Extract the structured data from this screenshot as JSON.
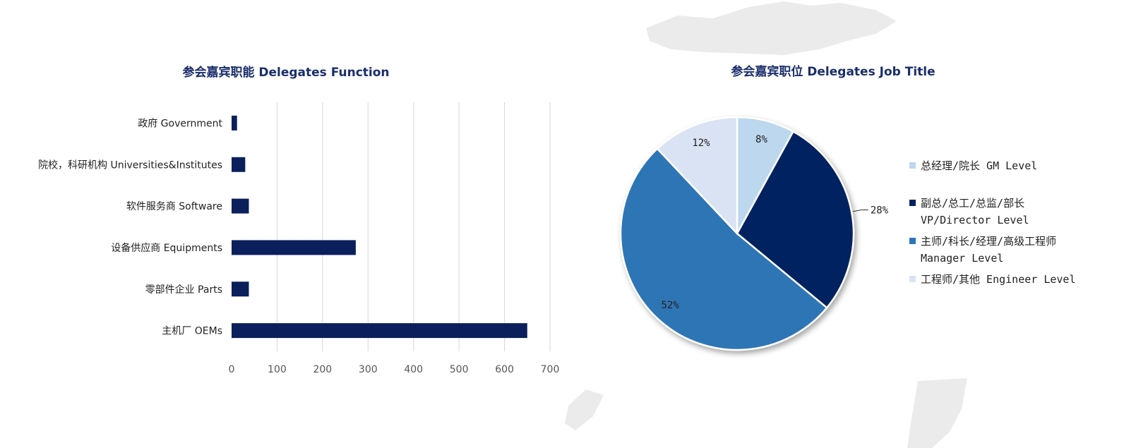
{
  "chart_data": [
    {
      "type": "bar",
      "orientation": "horizontal",
      "title": "参会嘉宾职能 Delegates Function",
      "categories": [
        "政府 Government",
        "院校，科研机构 Universities&Institutes",
        "软件服务商 Software",
        "设备供应商 Equipments",
        "零部件企业 Parts",
        "主机厂 OEMs"
      ],
      "values": [
        12,
        30,
        38,
        273,
        38,
        650
      ],
      "xlim": [
        0,
        700
      ],
      "xticks": [
        "0",
        "100",
        "200",
        "300",
        "400",
        "500",
        "600",
        "700"
      ],
      "grid": true,
      "colors": {
        "bar": "#0b1f5c"
      }
    },
    {
      "type": "pie",
      "title": "参会嘉宾职位 Delegates Job Title",
      "slices": [
        {
          "label": "总经理/院长 GM Level",
          "value": 8,
          "display": "8%",
          "color": "#bdd7ee"
        },
        {
          "label": "副总/总工/总监/部长 VP/Director Level",
          "value": 28,
          "display": "28%",
          "color": "#002060"
        },
        {
          "label": "主师/科长/经理/高级工程师 Manager Level",
          "value": 52,
          "display": "52%",
          "color": "#2e75b6"
        },
        {
          "label": "工程师/其他 Engineer Level",
          "value": 12,
          "display": "12%",
          "color": "#dae3f3"
        }
      ],
      "legend": [
        {
          "lines": [
            "总经理/院长 GM Level"
          ]
        },
        {
          "lines": [
            "副总/总工/总监/部长",
            "VP/Director Level"
          ]
        },
        {
          "lines": [
            "主师/科长/经理/高级工程师",
            "Manager Level"
          ]
        },
        {
          "lines": [
            "工程师/其他 Engineer Level"
          ]
        }
      ],
      "legend_position": "right"
    }
  ]
}
